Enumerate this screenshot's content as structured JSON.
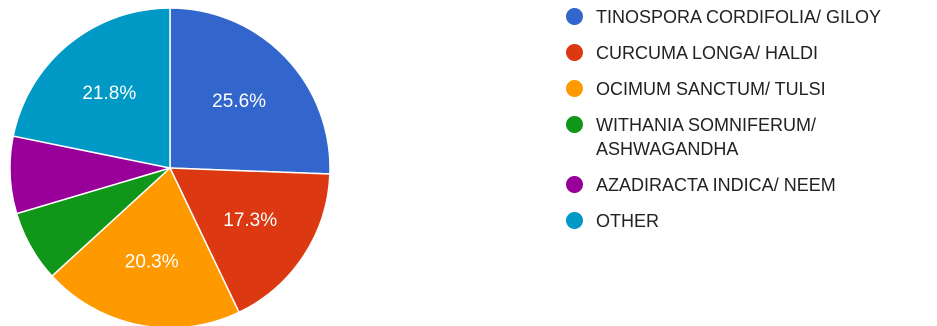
{
  "chart_data": {
    "type": "pie",
    "slices": [
      {
        "label": "TINOSPORA CORDIFOLIA/ GILOY",
        "value": 25.6,
        "display": "25.6%",
        "color": "#3366cc"
      },
      {
        "label": "CURCUMA LONGA/ HALDI",
        "value": 17.3,
        "display": "17.3%",
        "color": "#dc3912"
      },
      {
        "label": "OCIMUM SANCTUM/ TULSI",
        "value": 20.3,
        "display": "20.3%",
        "color": "#ff9900"
      },
      {
        "label": "WITHANIA SOMNIFERUM/ ASHWAGANDHA",
        "value": 7.2,
        "display": "",
        "color": "#109618"
      },
      {
        "label": "AZADIRACTA INDICA/ NEEM",
        "value": 7.8,
        "display": "",
        "color": "#990099"
      },
      {
        "label": "OTHER",
        "value": 21.8,
        "display": "21.8%",
        "color": "#0099c6"
      }
    ],
    "legend_position": "right",
    "start_angle_deg": 90,
    "direction": "clockwise"
  }
}
